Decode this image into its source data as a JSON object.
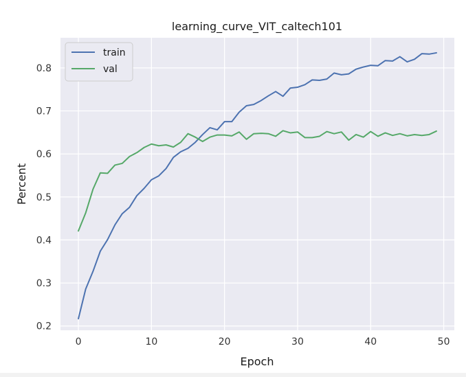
{
  "chart_data": {
    "type": "line",
    "title": "learning_curve_VIT_caltech101",
    "xlabel": "Epoch",
    "ylabel": "Percent",
    "xlim": [
      -2.45,
      51.45
    ],
    "ylim": [
      0.19,
      0.87
    ],
    "xticks": [
      0,
      10,
      20,
      30,
      40,
      50
    ],
    "xtick_labels": [
      "0",
      "10",
      "20",
      "30",
      "40",
      "50"
    ],
    "yticks": [
      0.2,
      0.3,
      0.4,
      0.5,
      0.6,
      0.7,
      0.8
    ],
    "ytick_labels": [
      "0.2",
      "0.3",
      "0.4",
      "0.5",
      "0.6",
      "0.7",
      "0.8"
    ],
    "grid": true,
    "legend_position": "top-left",
    "x": [
      0,
      1,
      2,
      3,
      4,
      5,
      6,
      7,
      8,
      9,
      10,
      11,
      12,
      13,
      14,
      15,
      16,
      17,
      18,
      19,
      20,
      21,
      22,
      23,
      24,
      25,
      26,
      27,
      28,
      29,
      30,
      31,
      32,
      33,
      34,
      35,
      36,
      37,
      38,
      39,
      40,
      41,
      42,
      43,
      44,
      45,
      46,
      47,
      48,
      49
    ],
    "series": [
      {
        "name": "train",
        "color": "#4c72b0",
        "values": [
          0.217,
          0.286,
          0.327,
          0.374,
          0.401,
          0.435,
          0.461,
          0.476,
          0.503,
          0.52,
          0.54,
          0.549,
          0.566,
          0.592,
          0.605,
          0.613,
          0.627,
          0.645,
          0.661,
          0.656,
          0.675,
          0.675,
          0.697,
          0.712,
          0.715,
          0.724,
          0.735,
          0.745,
          0.734,
          0.753,
          0.755,
          0.761,
          0.772,
          0.771,
          0.774,
          0.788,
          0.784,
          0.786,
          0.797,
          0.802,
          0.806,
          0.805,
          0.817,
          0.816,
          0.826,
          0.814,
          0.82,
          0.833,
          0.832,
          0.835
        ]
      },
      {
        "name": "val",
        "color": "#55a868",
        "values": [
          0.421,
          0.463,
          0.518,
          0.556,
          0.555,
          0.574,
          0.578,
          0.594,
          0.603,
          0.615,
          0.623,
          0.619,
          0.621,
          0.616,
          0.627,
          0.647,
          0.639,
          0.629,
          0.639,
          0.644,
          0.644,
          0.642,
          0.651,
          0.634,
          0.647,
          0.648,
          0.647,
          0.641,
          0.654,
          0.649,
          0.651,
          0.638,
          0.638,
          0.641,
          0.652,
          0.647,
          0.651,
          0.632,
          0.645,
          0.639,
          0.652,
          0.641,
          0.649,
          0.643,
          0.647,
          0.642,
          0.645,
          0.643,
          0.645,
          0.653
        ]
      }
    ]
  }
}
